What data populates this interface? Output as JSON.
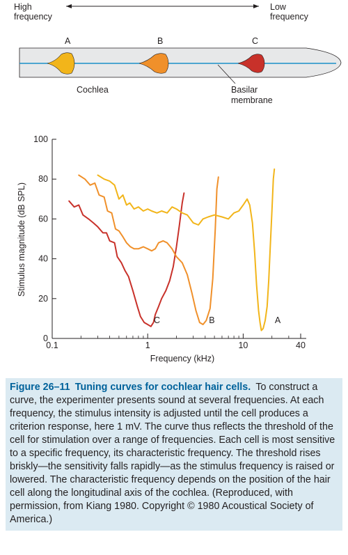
{
  "diagram": {
    "high_frequency_label": [
      "High",
      "frequency"
    ],
    "low_frequency_label": [
      "Low",
      "frequency"
    ],
    "cell_labels": [
      "A",
      "B",
      "C"
    ],
    "cochlea_label": "Cochlea",
    "basilar_membrane_label": [
      "Basilar",
      "membrane"
    ],
    "colors": {
      "cochlea_fill": "#e7e8e9",
      "membrane": "#1a8fc8",
      "cell_A": "#f2b51a",
      "cell_B": "#f0902a",
      "cell_C": "#c8312a"
    }
  },
  "chart_data": {
    "type": "line",
    "xlabel": "Frequency (kHz)",
    "ylabel": "Stimulus magnitude (dB SPL)",
    "xscale": "log",
    "xlim": [
      0.1,
      40
    ],
    "ylim": [
      0,
      100
    ],
    "x_ticks": [
      0.1,
      1,
      10,
      40
    ],
    "x_tick_labels": [
      "0.1",
      "1",
      "10",
      "40"
    ],
    "y_ticks": [
      0,
      20,
      40,
      60,
      80,
      100
    ],
    "y_tick_labels": [
      "0",
      "20",
      "40",
      "60",
      "80",
      "100"
    ],
    "grid": false,
    "series": [
      {
        "name": "C",
        "color": "#c8312a",
        "points": [
          [
            0.15,
            69
          ],
          [
            0.17,
            66
          ],
          [
            0.19,
            67
          ],
          [
            0.21,
            62
          ],
          [
            0.24,
            60
          ],
          [
            0.27,
            58
          ],
          [
            0.3,
            56
          ],
          [
            0.34,
            53
          ],
          [
            0.37,
            53
          ],
          [
            0.4,
            49
          ],
          [
            0.45,
            48
          ],
          [
            0.48,
            41
          ],
          [
            0.53,
            38
          ],
          [
            0.58,
            34
          ],
          [
            0.63,
            31
          ],
          [
            0.7,
            24
          ],
          [
            0.78,
            16
          ],
          [
            0.84,
            11
          ],
          [
            0.92,
            8
          ],
          [
            1.0,
            7
          ],
          [
            1.08,
            6
          ],
          [
            1.15,
            8
          ],
          [
            1.2,
            12
          ],
          [
            1.3,
            16
          ],
          [
            1.4,
            20
          ],
          [
            1.55,
            24
          ],
          [
            1.7,
            29
          ],
          [
            1.85,
            36
          ],
          [
            2.0,
            46
          ],
          [
            2.15,
            57
          ],
          [
            2.3,
            68
          ],
          [
            2.4,
            73
          ]
        ]
      },
      {
        "name": "B",
        "color": "#f0902a",
        "points": [
          [
            0.19,
            82
          ],
          [
            0.22,
            80
          ],
          [
            0.25,
            77
          ],
          [
            0.28,
            78
          ],
          [
            0.31,
            72
          ],
          [
            0.35,
            71
          ],
          [
            0.38,
            64
          ],
          [
            0.42,
            63
          ],
          [
            0.46,
            55
          ],
          [
            0.5,
            54
          ],
          [
            0.55,
            51
          ],
          [
            0.6,
            48
          ],
          [
            0.66,
            46
          ],
          [
            0.72,
            45
          ],
          [
            0.8,
            45
          ],
          [
            0.9,
            46
          ],
          [
            1.0,
            45
          ],
          [
            1.1,
            44
          ],
          [
            1.2,
            45
          ],
          [
            1.3,
            48
          ],
          [
            1.45,
            49
          ],
          [
            1.6,
            48
          ],
          [
            1.8,
            45
          ],
          [
            2.0,
            41
          ],
          [
            2.3,
            38
          ],
          [
            2.6,
            32
          ],
          [
            2.9,
            23
          ],
          [
            3.2,
            14
          ],
          [
            3.5,
            8
          ],
          [
            3.8,
            7
          ],
          [
            4.1,
            9
          ],
          [
            4.5,
            15
          ],
          [
            4.8,
            30
          ],
          [
            5.1,
            55
          ],
          [
            5.3,
            75
          ],
          [
            5.5,
            81
          ]
        ]
      },
      {
        "name": "A",
        "color": "#f2b51a",
        "points": [
          [
            0.3,
            82
          ],
          [
            0.35,
            80
          ],
          [
            0.4,
            79
          ],
          [
            0.45,
            77
          ],
          [
            0.5,
            70
          ],
          [
            0.55,
            72
          ],
          [
            0.6,
            67
          ],
          [
            0.65,
            68
          ],
          [
            0.72,
            65
          ],
          [
            0.8,
            66
          ],
          [
            0.9,
            64
          ],
          [
            1.0,
            65
          ],
          [
            1.1,
            64
          ],
          [
            1.25,
            63
          ],
          [
            1.4,
            64
          ],
          [
            1.6,
            63
          ],
          [
            1.8,
            66
          ],
          [
            2.0,
            65
          ],
          [
            2.3,
            63
          ],
          [
            2.6,
            62
          ],
          [
            3.0,
            58
          ],
          [
            3.4,
            57
          ],
          [
            3.8,
            60
          ],
          [
            4.3,
            61
          ],
          [
            5.0,
            62
          ],
          [
            6.0,
            61
          ],
          [
            7.0,
            60
          ],
          [
            8.0,
            63
          ],
          [
            9.0,
            64
          ],
          [
            10.0,
            67
          ],
          [
            11.0,
            70
          ],
          [
            11.7,
            67
          ],
          [
            12.5,
            58
          ],
          [
            13.2,
            43
          ],
          [
            13.8,
            27
          ],
          [
            14.5,
            14
          ],
          [
            15.0,
            8
          ],
          [
            15.5,
            4
          ],
          [
            16.2,
            5
          ],
          [
            17.0,
            9
          ],
          [
            17.8,
            16
          ],
          [
            18.5,
            29
          ],
          [
            19.2,
            46
          ],
          [
            20.0,
            64
          ],
          [
            20.7,
            80
          ],
          [
            21.2,
            85
          ]
        ]
      }
    ],
    "annotations": [
      {
        "text": "C",
        "x": 1.25,
        "y": 7
      },
      {
        "text": "B",
        "x": 4.7,
        "y": 7
      },
      {
        "text": "A",
        "x": 23.0,
        "y": 7
      }
    ]
  },
  "caption": {
    "figure_number": "Figure 26–11",
    "title": "Tuning curves for cochlear hair cells.",
    "body": "To construct a curve, the experimenter presents sound at several frequencies. At each frequency, the stimulus intensity is adjusted until the cell produces a criterion response, here 1 mV. The curve thus reflects the threshold of the cell for stimulation over a range of frequencies. Each cell is most sensitive to a specific frequency, its characteristic frequency. The threshold rises briskly—the sensitivity falls rapidly—as the stimulus frequency is raised or lowered. The characteristic frequency depends on the position of the hair cell along the longitudinal axis of the cochlea. (Reproduced, with permission, from Kiang 1980. Copyright © 1980 Acoustical Society of America.)"
  }
}
